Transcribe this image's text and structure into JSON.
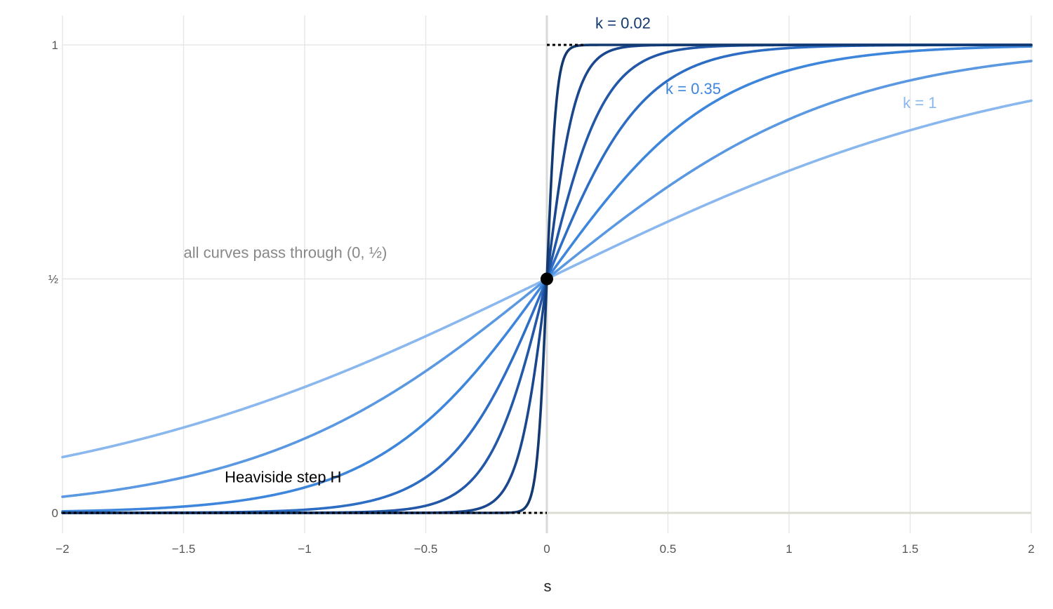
{
  "chart_data": {
    "type": "line",
    "title": "",
    "xlabel": "s",
    "ylabel": "",
    "xlim": [
      -2,
      2
    ],
    "ylim": [
      -0.1,
      1.1
    ],
    "grid": true,
    "x_ticks": [
      {
        "value": -2,
        "label": "−2"
      },
      {
        "value": -1.5,
        "label": "−1.5"
      },
      {
        "value": -1,
        "label": "−1"
      },
      {
        "value": -0.5,
        "label": "−0.5"
      },
      {
        "value": 0,
        "label": "0"
      },
      {
        "value": 0.5,
        "label": "0.5"
      },
      {
        "value": 1,
        "label": "1"
      },
      {
        "value": 1.5,
        "label": "1.5"
      },
      {
        "value": 2,
        "label": "2"
      }
    ],
    "y_ticks": [
      {
        "value": 0,
        "label": "0"
      },
      {
        "value": 0.5,
        "label": "½"
      },
      {
        "value": 1,
        "label": "1"
      }
    ],
    "function": "1 / (1 + exp(-s / k))",
    "series": [
      {
        "k": 1,
        "color": "#8ab8ee"
      },
      {
        "k": 0.6,
        "color": "#5a98e2"
      },
      {
        "k": 0.35,
        "color": "#3d86dc"
      },
      {
        "k": 0.2,
        "color": "#2e6dc4"
      },
      {
        "k": 0.12,
        "color": "#2358a8"
      },
      {
        "k": 0.06,
        "color": "#1a478e"
      },
      {
        "k": 0.02,
        "color": "#123a70"
      }
    ],
    "step": {
      "name": "Heaviside step H",
      "color": "#000000",
      "style": "dotted"
    },
    "point": {
      "x": 0,
      "y": 0.5,
      "color": "#000000"
    },
    "annotations": [
      {
        "id": "k002",
        "text": "k = 0.02",
        "x": 0.2,
        "y": 1.035,
        "color": "#123a70"
      },
      {
        "id": "k035",
        "text": "k = 0.35",
        "x": 0.49,
        "y": 0.895,
        "color": "#3d86dc"
      },
      {
        "id": "k1",
        "text": "k = 1",
        "x": 1.47,
        "y": 0.865,
        "color": "#8ab8ee"
      },
      {
        "id": "pass",
        "text": "all curves pass through (0, ½)",
        "x": -1.5,
        "y": 0.545,
        "color": "#888888"
      },
      {
        "id": "heaviside",
        "text": "Heaviside step H",
        "x": -1.33,
        "y": 0.065,
        "color": "#000000"
      }
    ]
  }
}
